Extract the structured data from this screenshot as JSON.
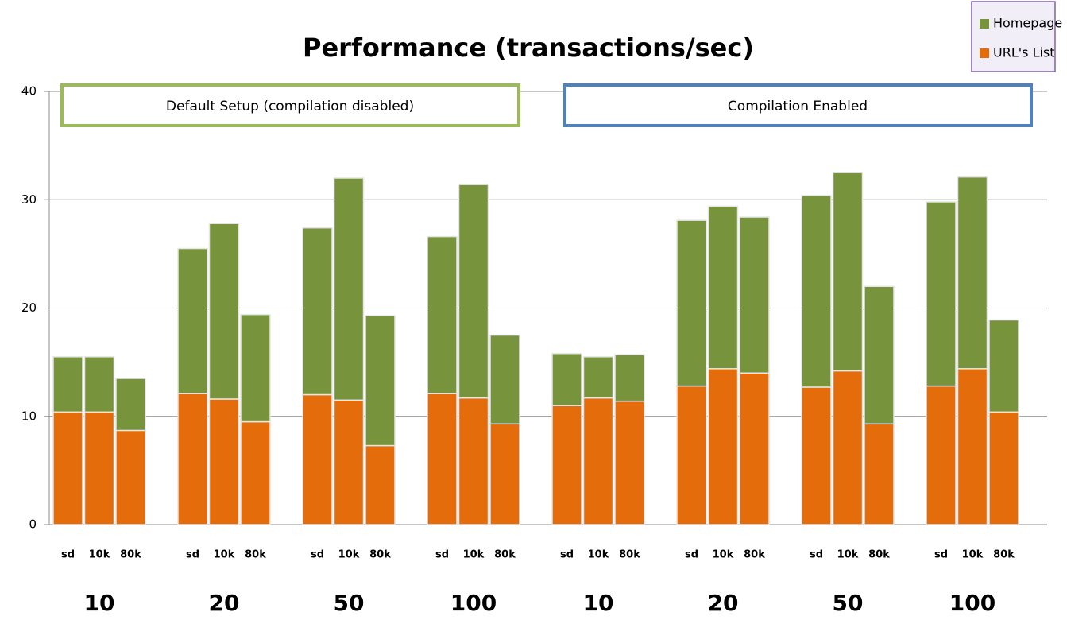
{
  "chart_data": {
    "type": "stacked-bar",
    "title": "Performance (transactions/sec)",
    "annotations": [
      "Default Setup (compilation disabled)",
      "Compilation Enabled"
    ],
    "categories": [
      "sd",
      "10k",
      "80k",
      "sd",
      "10k",
      "80k",
      "sd",
      "10k",
      "80k",
      "sd",
      "10k",
      "80k",
      "sd",
      "10k",
      "80k",
      "sd",
      "10k",
      "80k",
      "sd",
      "10k",
      "80k",
      "sd",
      "10k",
      "80k"
    ],
    "groups": [
      "10",
      "20",
      "50",
      "100",
      "10",
      "20",
      "50",
      "100"
    ],
    "series": [
      {
        "name": "URL's List",
        "color": "#e46c0a",
        "values": [
          10.4,
          10.4,
          8.7,
          12.1,
          11.6,
          9.5,
          12.0,
          11.5,
          7.3,
          12.1,
          11.7,
          9.3,
          11.0,
          11.7,
          11.4,
          12.8,
          14.4,
          14.0,
          12.7,
          14.2,
          9.3,
          12.8,
          14.4,
          10.4
        ]
      },
      {
        "name": "Homepage",
        "color": "#77933c",
        "values": [
          5.1,
          5.1,
          4.8,
          13.4,
          16.2,
          9.9,
          15.4,
          20.5,
          12.0,
          14.5,
          19.7,
          8.2,
          4.8,
          3.8,
          4.3,
          15.3,
          15.0,
          14.4,
          17.7,
          18.3,
          12.7,
          17.0,
          17.7,
          8.5
        ]
      }
    ],
    "ylim": [
      0,
      40
    ],
    "yticks": [
      0,
      10,
      20,
      30,
      40
    ],
    "grid": true,
    "legend": "top-right"
  }
}
